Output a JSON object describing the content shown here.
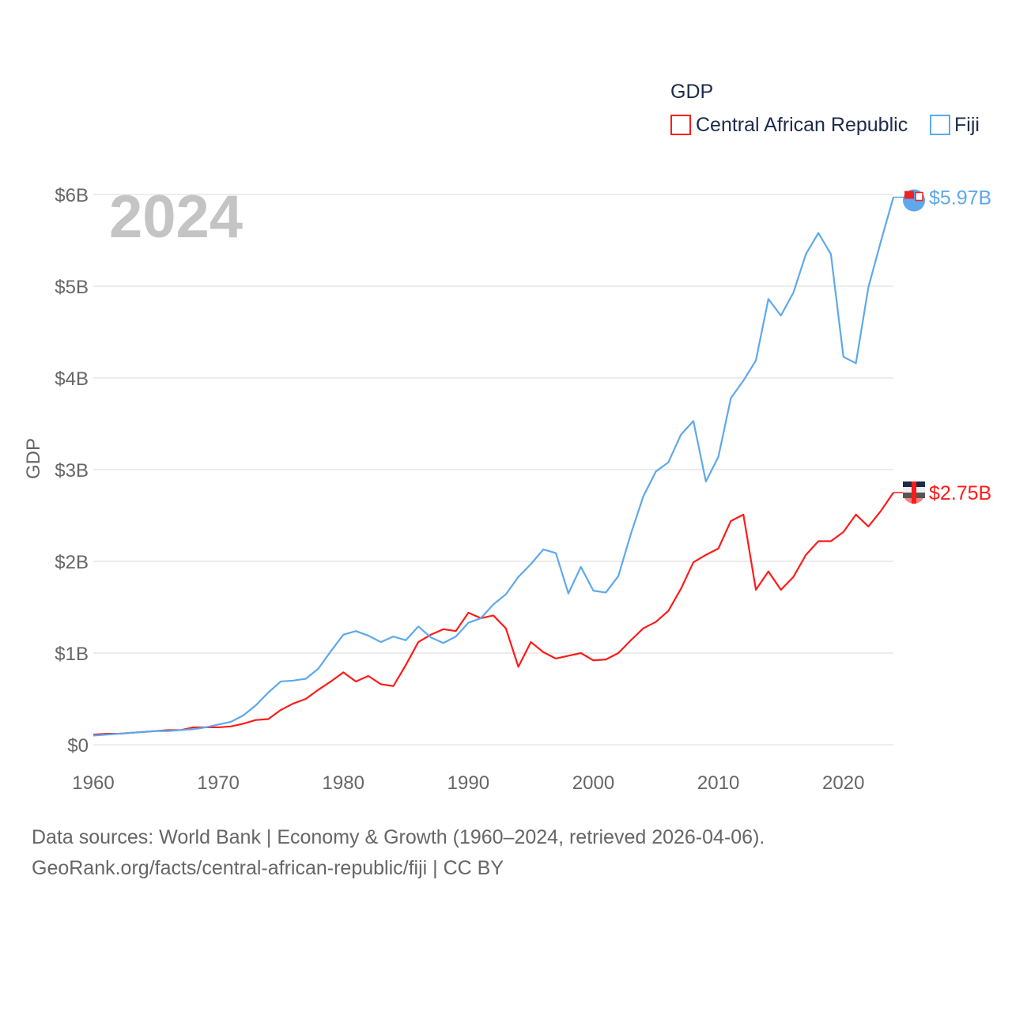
{
  "chart_data": {
    "type": "line",
    "title": "",
    "year_watermark": "2024",
    "legend_title": "GDP",
    "legend_position": "top-right",
    "xlabel": "",
    "ylabel": "GDP",
    "xlim": [
      1960,
      2024
    ],
    "ylim": [
      0,
      6
    ],
    "grid": true,
    "x_ticks": [
      1960,
      1970,
      1980,
      1990,
      2000,
      2010,
      2020
    ],
    "x_tick_labels": [
      "1960",
      "1970",
      "1980",
      "1990",
      "2000",
      "2010",
      "2020"
    ],
    "y_ticks": [
      0,
      1,
      2,
      3,
      4,
      5,
      6
    ],
    "y_tick_labels": [
      "$0",
      "$1B",
      "$2B",
      "$3B",
      "$4B",
      "$5B",
      "$6B"
    ],
    "x_start": 1960,
    "series": [
      {
        "name": "Central African Republic",
        "color": "#ff1a1a",
        "end_label": "$2.75B",
        "values": [
          0.11,
          0.12,
          0.12,
          0.13,
          0.14,
          0.15,
          0.16,
          0.16,
          0.19,
          0.19,
          0.19,
          0.2,
          0.23,
          0.27,
          0.28,
          0.38,
          0.45,
          0.5,
          0.6,
          0.69,
          0.79,
          0.69,
          0.75,
          0.66,
          0.64,
          0.87,
          1.12,
          1.2,
          1.26,
          1.24,
          1.44,
          1.38,
          1.41,
          1.27,
          0.85,
          1.12,
          1.01,
          0.94,
          0.97,
          1.0,
          0.92,
          0.93,
          1.0,
          1.14,
          1.27,
          1.34,
          1.46,
          1.7,
          1.99,
          2.07,
          2.14,
          2.44,
          2.51,
          1.69,
          1.89,
          1.69,
          1.83,
          2.07,
          2.22,
          2.22,
          2.32,
          2.51,
          2.38,
          2.55,
          2.75
        ]
      },
      {
        "name": "Fiji",
        "color": "#5fa8ec",
        "end_label": "$5.97B",
        "values": [
          0.1,
          0.11,
          0.12,
          0.13,
          0.14,
          0.15,
          0.15,
          0.16,
          0.17,
          0.19,
          0.22,
          0.25,
          0.32,
          0.43,
          0.57,
          0.69,
          0.7,
          0.72,
          0.83,
          1.02,
          1.2,
          1.24,
          1.19,
          1.12,
          1.18,
          1.14,
          1.29,
          1.17,
          1.11,
          1.18,
          1.33,
          1.38,
          1.53,
          1.64,
          1.83,
          1.97,
          2.13,
          2.09,
          1.65,
          1.94,
          1.68,
          1.66,
          1.84,
          2.3,
          2.71,
          2.98,
          3.08,
          3.38,
          3.53,
          2.87,
          3.14,
          3.78,
          3.97,
          4.19,
          4.86,
          4.68,
          4.93,
          5.35,
          5.58,
          5.35,
          4.23,
          4.16,
          4.99,
          5.49,
          5.97
        ]
      }
    ]
  },
  "footer": {
    "line1": "Data sources: World Bank | Economy & Growth (1960–2024, retrieved 2026-04-06).",
    "line2": "GeoRank.org/facts/central-african-republic/fiji | CC BY"
  }
}
